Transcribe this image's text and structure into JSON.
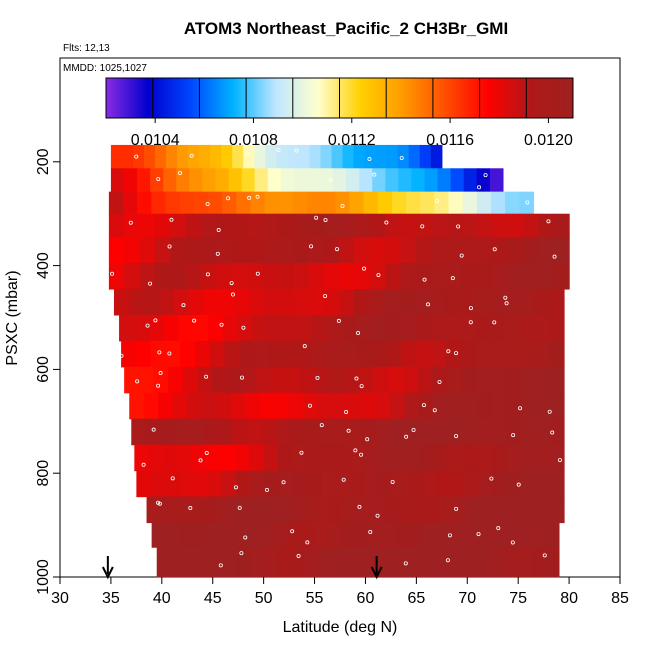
{
  "chart_data": {
    "type": "heatmap",
    "title": "ATOM3 Northeast_Pacific_2 CH3Br_GMI",
    "annotations": [
      "Flts: 12,13",
      "MMDD: 1025,1027"
    ],
    "xlabel": "Latitude (deg N)",
    "ylabel": "PSXC (mbar)",
    "xlim": [
      30,
      85
    ],
    "ylim": [
      1000,
      0
    ],
    "x_ticks": [
      "30",
      "35",
      "40",
      "45",
      "50",
      "55",
      "60",
      "65",
      "70",
      "75",
      "80",
      "85"
    ],
    "y_ticks": [
      "200",
      "400",
      "600",
      "800",
      "1000"
    ],
    "colorbar": {
      "min": 0.0102,
      "max": 0.0121,
      "tick_labels": [
        "0.0104",
        "0.0108",
        "0.0112",
        "0.0116",
        "0.0120"
      ],
      "tick_values": [
        0.0104,
        0.0108,
        0.0112,
        0.0116,
        0.012
      ],
      "colors": [
        "#8a2be2",
        "#0000cd",
        "#0047ff",
        "#00b2ff",
        "#bfe6ff",
        "#ffffcc",
        "#ffd000",
        "#ff9900",
        "#ff4d00",
        "#ff0000",
        "#b01818",
        "#9e2020"
      ]
    },
    "arrows_latitude": [
      34.7,
      61.1
    ],
    "rows": [
      {
        "p": 190,
        "x0": 35.0,
        "x1": 67.5,
        "v0": 0.01165,
        "v1": 0.0104
      },
      {
        "p": 235,
        "x0": 35.0,
        "x1": 73.5,
        "v0": 0.01175,
        "v1": 0.01035
      },
      {
        "p": 280,
        "x0": 34.8,
        "x1": 76.5,
        "v0": 0.01185,
        "v1": 0.0109
      },
      {
        "p": 320,
        "x0": 34.8,
        "x1": 80.0,
        "v0": 0.0119,
        "v1": 0.01195
      },
      {
        "p": 370,
        "x0": 34.8,
        "x1": 80.0,
        "v0": 0.01185,
        "v1": 0.012
      },
      {
        "p": 420,
        "x0": 34.8,
        "x1": 80.0,
        "v0": 0.0118,
        "v1": 0.012
      },
      {
        "p": 470,
        "x0": 35.3,
        "x1": 79.5,
        "v0": 0.0118,
        "v1": 0.01203
      },
      {
        "p": 520,
        "x0": 35.8,
        "x1": 79.5,
        "v0": 0.0118,
        "v1": 0.01205
      },
      {
        "p": 570,
        "x0": 36.0,
        "x1": 79.5,
        "v0": 0.0118,
        "v1": 0.01205
      },
      {
        "p": 620,
        "x0": 36.3,
        "x1": 79.5,
        "v0": 0.01175,
        "v1": 0.01208
      },
      {
        "p": 670,
        "x0": 36.8,
        "x1": 79.5,
        "v0": 0.0117,
        "v1": 0.01208
      },
      {
        "p": 720,
        "x0": 37.0,
        "x1": 79.5,
        "v0": 0.01195,
        "v1": 0.0121
      },
      {
        "p": 770,
        "x0": 37.3,
        "x1": 79.5,
        "v0": 0.0118,
        "v1": 0.0121
      },
      {
        "p": 820,
        "x0": 37.5,
        "x1": 79.5,
        "v0": 0.01185,
        "v1": 0.0121
      },
      {
        "p": 870,
        "x0": 38.5,
        "x1": 79.5,
        "v0": 0.012,
        "v1": 0.0121
      },
      {
        "p": 920,
        "x0": 39.0,
        "x1": 79.0,
        "v0": 0.01205,
        "v1": 0.0121
      },
      {
        "p": 965,
        "x0": 39.5,
        "x1": 79.0,
        "v0": 0.0121,
        "v1": 0.0121
      }
    ]
  }
}
